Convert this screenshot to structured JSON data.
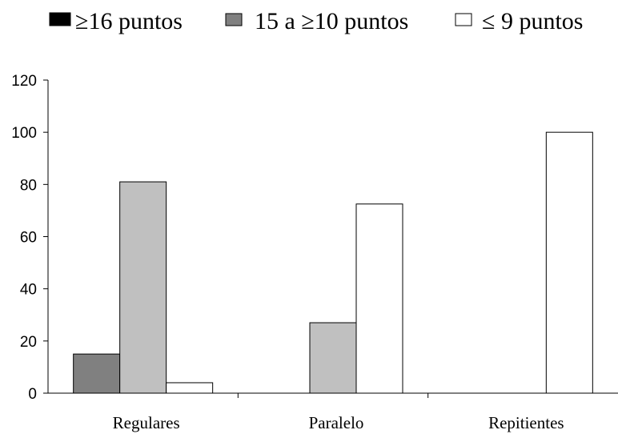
{
  "chart_data": {
    "type": "bar",
    "categories": [
      "Regulares",
      "Paralelo",
      "Repitientes"
    ],
    "series": [
      {
        "name": "≥16 puntos",
        "values": [
          15,
          0,
          0
        ],
        "color": "#808080"
      },
      {
        "name": "15 a ≥10 puntos",
        "values": [
          81,
          27,
          0
        ],
        "color": "#c0c0c0"
      },
      {
        "name": "≤ 9 puntos",
        "values": [
          4,
          72.5,
          100
        ],
        "color": "#ffffff"
      }
    ],
    "y_ticks": [
      "0",
      "20",
      "40",
      "60",
      "80",
      "100",
      "120"
    ],
    "ylim": [
      0,
      120
    ],
    "legend_position": "top",
    "grid": false
  }
}
